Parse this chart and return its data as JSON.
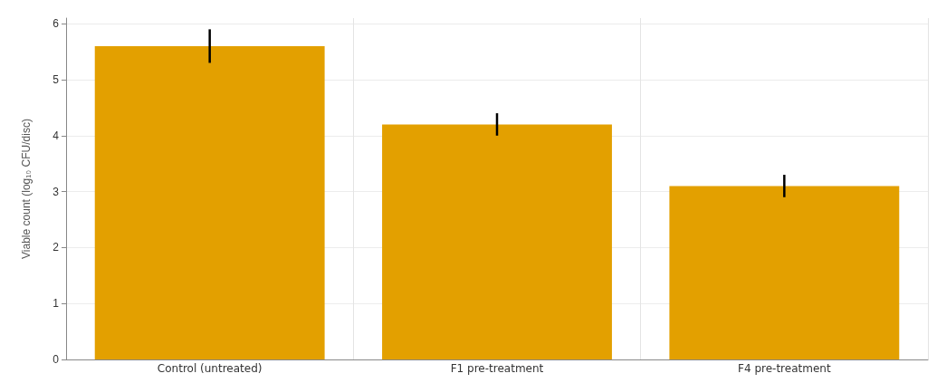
{
  "chart_data": {
    "type": "bar",
    "ylabel": "Viable count (log₁₀ CFU/disc)",
    "categories": [
      "Control (untreated)",
      "F1 pre-treatment",
      "F4 pre-treatment"
    ],
    "values": [
      5.6,
      4.2,
      3.1
    ],
    "errors": [
      0.3,
      0.2,
      0.2
    ],
    "color": "#e3a000",
    "ylim": [
      0,
      6.1
    ],
    "yticks": [
      0,
      1,
      2,
      3,
      4,
      5,
      6
    ],
    "grid": true
  }
}
